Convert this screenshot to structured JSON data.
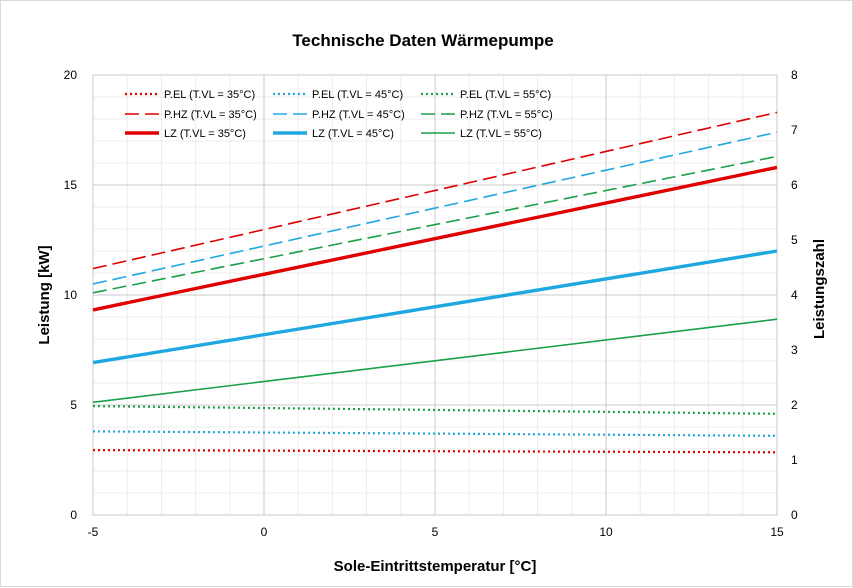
{
  "chart_data": {
    "type": "line",
    "title": "Technische Daten Wärmepumpe",
    "xlabel": "Sole-Eintrittstemperatur [°C]",
    "ylabel": "Leistung [kW]",
    "y2label": "Leistungszahl",
    "xlim": [
      -5,
      15
    ],
    "ylim": [
      0,
      20
    ],
    "y2lim": [
      0,
      8
    ],
    "x_ticks": [
      "-5",
      "0",
      "5",
      "10",
      "15"
    ],
    "y_ticks": [
      "0",
      "5",
      "10",
      "15",
      "20"
    ],
    "y2_ticks": [
      "0",
      "1",
      "2",
      "3",
      "4",
      "5",
      "6",
      "7",
      "8"
    ],
    "grid": true,
    "legend_position": "top-left",
    "x": [
      -5,
      15
    ],
    "series": [
      {
        "name": "P.EL (T.VL = 35°C)",
        "axis": "left",
        "style": "dotted",
        "color": "#e00000",
        "values": [
          2.95,
          2.85
        ]
      },
      {
        "name": "P.EL (T.VL = 45°C)",
        "axis": "left",
        "style": "dotted",
        "color": "#1fa8e0",
        "values": [
          3.8,
          3.6
        ]
      },
      {
        "name": "P.EL (T.VL = 55°C)",
        "axis": "left",
        "style": "dotted",
        "color": "#1aa04a",
        "values": [
          4.95,
          4.6
        ]
      },
      {
        "name": "P.HZ (T.VL = 35°C)",
        "axis": "left",
        "style": "dashed",
        "color": "#e00000",
        "values": [
          11.2,
          18.3
        ]
      },
      {
        "name": "P.HZ (T.VL = 45°C)",
        "axis": "left",
        "style": "dashed",
        "color": "#1fa8e0",
        "values": [
          10.5,
          17.4
        ]
      },
      {
        "name": "P.HZ (T.VL = 55°C)",
        "axis": "left",
        "style": "dashed",
        "color": "#1aa04a",
        "values": [
          10.1,
          16.3
        ]
      },
      {
        "name": "LZ (T.VL = 35°C)",
        "axis": "right",
        "style": "solid-thick",
        "color": "#e00000",
        "values": [
          3.73,
          6.32
        ]
      },
      {
        "name": "LZ (T.VL = 45°C)",
        "axis": "right",
        "style": "solid-thick",
        "color": "#1fa8e0",
        "values": [
          2.77,
          4.8
        ]
      },
      {
        "name": "LZ (T.VL = 55°C)",
        "axis": "right",
        "style": "solid",
        "color": "#1aa04a",
        "values": [
          2.05,
          3.56
        ]
      }
    ]
  }
}
